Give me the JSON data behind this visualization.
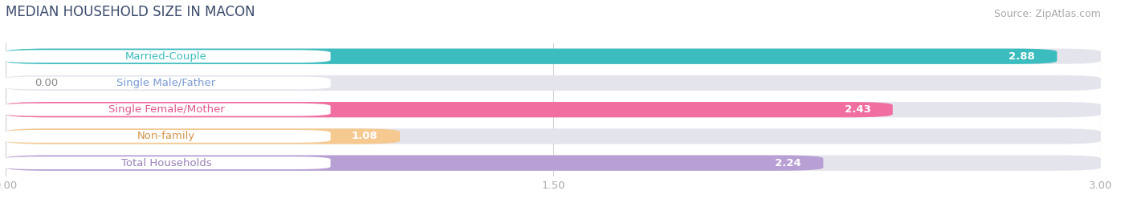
{
  "title": "MEDIAN HOUSEHOLD SIZE IN MACON",
  "source": "Source: ZipAtlas.com",
  "categories": [
    "Married-Couple",
    "Single Male/Father",
    "Single Female/Mother",
    "Non-family",
    "Total Households"
  ],
  "values": [
    2.88,
    0.0,
    2.43,
    1.08,
    2.24
  ],
  "bar_colors": [
    "#3bbcbe",
    "#a8c0e8",
    "#f06fa0",
    "#f5c990",
    "#b89fd4"
  ],
  "label_text_colors": [
    "#3bbcbe",
    "#7a9ad4",
    "#e05590",
    "#d4934a",
    "#9980b8"
  ],
  "bg_color_bars": "#e8e8ee",
  "xlim": [
    0,
    3.0
  ],
  "xticks": [
    0.0,
    1.5,
    3.0
  ],
  "xtick_labels": [
    "0.00",
    "1.50",
    "3.00"
  ],
  "title_fontsize": 12,
  "label_fontsize": 9.5,
  "value_fontsize": 9.5,
  "source_fontsize": 9,
  "bar_height": 0.58,
  "background_color": "#ffffff",
  "title_color": "#3a4a6b",
  "value_color_inside": "#ffffff",
  "value_color_outside": "#888888"
}
